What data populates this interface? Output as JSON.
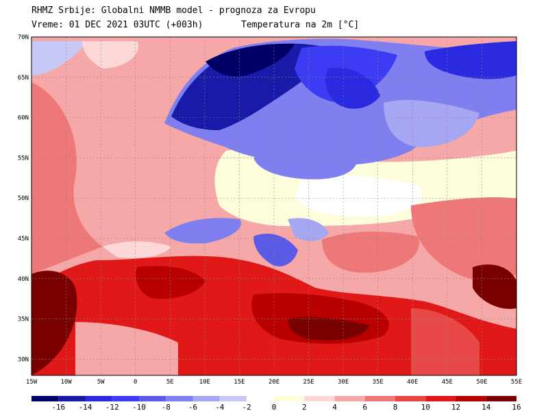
{
  "header": {
    "line1": "RHMZ Srbije: Globalni NMMB model - prognoza za Evropu",
    "line2": "Vreme: 01 DEC 2021 03UTC (+003h)",
    "variable": "Temperatura na 2m [°C]"
  },
  "map": {
    "lon_ticks": [
      "15W",
      "10W",
      "5W",
      "0",
      "5E",
      "10E",
      "15E",
      "20E",
      "25E",
      "30E",
      "35E",
      "40E",
      "45E",
      "50E",
      "55E"
    ],
    "lat_ticks": [
      "70N",
      "65N",
      "60N",
      "55N",
      "50N",
      "45N",
      "40N",
      "35N",
      "30N"
    ],
    "lon_range": [
      -15,
      55
    ],
    "lat_range": [
      28,
      70
    ],
    "grid": true
  },
  "colorbar": {
    "labels": [
      "-16",
      "-14",
      "-12",
      "-10",
      "-8",
      "-6",
      "-4",
      "-2",
      "0",
      "2",
      "4",
      "6",
      "8",
      "10",
      "12",
      "14",
      "16"
    ],
    "cold_colors": [
      "#000066",
      "#1a1aa8",
      "#2a2ae0",
      "#3c3cf5",
      "#5a5ae6",
      "#7f7ff0",
      "#a6a6f2",
      "#c8c8f7"
    ],
    "warm_colors": [
      "#fdfddc",
      "#fcd7d7",
      "#f6a8a8",
      "#ee7777",
      "#e84848",
      "#e01818",
      "#b80000",
      "#7a0000"
    ]
  }
}
